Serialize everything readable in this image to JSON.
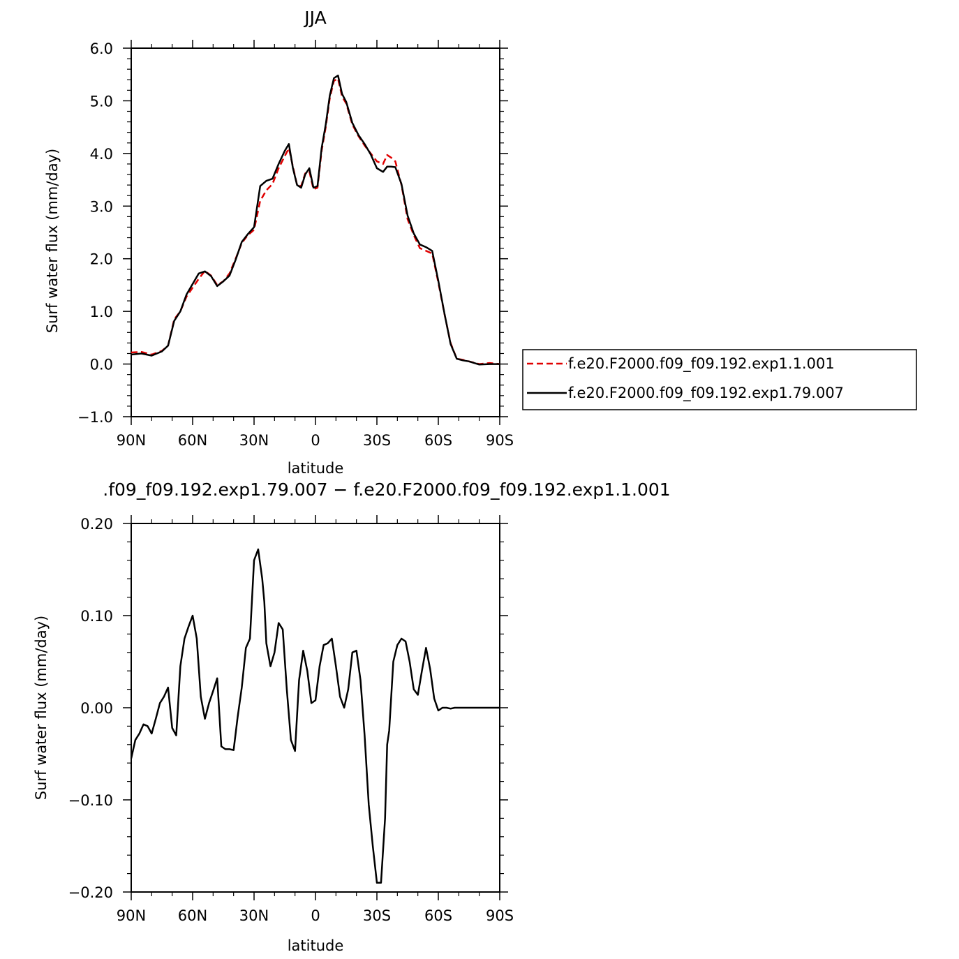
{
  "chart_data": [
    {
      "type": "line",
      "title": "JJA",
      "xlabel": "latitude",
      "ylabel": "Surf water flux (mm/day)",
      "xlim": [
        90,
        -90
      ],
      "ylim": [
        -1.0,
        6.0
      ],
      "x_ticks": [
        90,
        60,
        30,
        0,
        -30,
        -60,
        -90
      ],
      "x_tick_labels": [
        "90N",
        "60N",
        "30N",
        "0",
        "30S",
        "60S",
        "90S"
      ],
      "y_ticks": [
        -1.0,
        0.0,
        1.0,
        2.0,
        3.0,
        4.0,
        5.0,
        6.0
      ],
      "y_tick_labels": [
        "−1.0",
        "0.0",
        "1.0",
        "2.0",
        "3.0",
        "4.0",
        "5.0",
        "6.0"
      ],
      "legend_position": "right",
      "series": [
        {
          "name": "f.e20.F2000.f09_f09.192.exp1.1.001",
          "color": "#e00000",
          "dash": "dashed",
          "x": [
            90,
            85,
            80,
            75,
            72,
            69,
            66,
            63,
            60,
            57,
            54,
            51,
            48,
            45,
            42,
            39,
            36,
            33,
            30,
            27,
            24,
            21,
            18,
            15,
            13,
            11,
            9,
            7,
            5,
            3,
            1,
            -1,
            -3,
            -5,
            -7,
            -9,
            -11,
            -13,
            -15,
            -18,
            -21,
            -24,
            -27,
            -30,
            -33,
            -35,
            -37,
            -39,
            -42,
            -45,
            -48,
            -51,
            -54,
            -57,
            -60,
            -63,
            -66,
            -69,
            -72,
            -75,
            -80,
            -85,
            -90
          ],
          "y": [
            0.22,
            0.23,
            0.18,
            0.25,
            0.35,
            0.85,
            1.0,
            1.28,
            1.45,
            1.62,
            1.77,
            1.68,
            1.5,
            1.57,
            1.72,
            2.0,
            2.3,
            2.45,
            2.55,
            3.1,
            3.3,
            3.42,
            3.72,
            3.95,
            4.1,
            3.75,
            3.4,
            3.38,
            3.62,
            3.66,
            3.32,
            3.35,
            4.05,
            4.5,
            5.05,
            5.38,
            5.42,
            5.08,
            4.95,
            4.55,
            4.33,
            4.15,
            4.0,
            3.85,
            3.8,
            3.97,
            3.92,
            3.85,
            3.4,
            2.75,
            2.45,
            2.2,
            2.15,
            2.1,
            1.55,
            0.95,
            0.4,
            0.1,
            0.08,
            0.05,
            0.0,
            0.02,
            0.0
          ]
        },
        {
          "name": "f.e20.F2000.f09_f09.192.exp1.79.007",
          "color": "#000000",
          "dash": "solid",
          "x": [
            90,
            85,
            80,
            75,
            72,
            69,
            66,
            63,
            60,
            57,
            54,
            51,
            48,
            45,
            42,
            39,
            36,
            33,
            30,
            27,
            24,
            21,
            18,
            15,
            13,
            11,
            9,
            7,
            5,
            3,
            1,
            -1,
            -3,
            -5,
            -7,
            -9,
            -11,
            -13,
            -15,
            -18,
            -21,
            -24,
            -27,
            -30,
            -33,
            -35,
            -37,
            -39,
            -42,
            -45,
            -48,
            -51,
            -54,
            -57,
            -60,
            -63,
            -66,
            -69,
            -72,
            -75,
            -80,
            -85,
            -90
          ],
          "y": [
            0.18,
            0.2,
            0.16,
            0.24,
            0.35,
            0.82,
            1.0,
            1.32,
            1.52,
            1.72,
            1.76,
            1.67,
            1.48,
            1.57,
            1.68,
            1.98,
            2.32,
            2.47,
            2.6,
            3.38,
            3.48,
            3.52,
            3.8,
            4.05,
            4.18,
            3.72,
            3.4,
            3.35,
            3.6,
            3.72,
            3.35,
            3.38,
            4.1,
            4.55,
            5.1,
            5.43,
            5.48,
            5.13,
            4.98,
            4.58,
            4.35,
            4.18,
            3.98,
            3.72,
            3.65,
            3.75,
            3.75,
            3.74,
            3.42,
            2.82,
            2.48,
            2.27,
            2.22,
            2.15,
            1.58,
            0.96,
            0.38,
            0.1,
            0.07,
            0.05,
            -0.01,
            0.0,
            0.0
          ]
        }
      ]
    },
    {
      "type": "line",
      "title": ".f09_f09.192.exp1.79.007 − f.e20.F2000.f09_f09.192.exp1.1.001",
      "xlabel": "latitude",
      "ylabel": "Surf water flux (mm/day)",
      "xlim": [
        90,
        -90
      ],
      "ylim": [
        -0.2,
        0.2
      ],
      "x_ticks": [
        90,
        60,
        30,
        0,
        -30,
        -60,
        -90
      ],
      "x_tick_labels": [
        "90N",
        "60N",
        "30N",
        "0",
        "30S",
        "60S",
        "90S"
      ],
      "y_ticks": [
        -0.2,
        -0.1,
        0.0,
        0.1,
        0.2
      ],
      "y_tick_labels": [
        "−0.20",
        "−0.10",
        "0.00",
        "0.10",
        "0.20"
      ],
      "series": [
        {
          "color": "#000000",
          "dash": "solid",
          "x": [
            90,
            88,
            86,
            84,
            82,
            80,
            78,
            76,
            74,
            72,
            70,
            68,
            66,
            64,
            62,
            60,
            58,
            56,
            54,
            52,
            50,
            48,
            46,
            44,
            42,
            40,
            38,
            36,
            34,
            32,
            30,
            28,
            26,
            25,
            24,
            22,
            20,
            18,
            16,
            14,
            12,
            10,
            8,
            6,
            4,
            2,
            0,
            -2,
            -4,
            -6,
            -8,
            -10,
            -12,
            -14,
            -16,
            -18,
            -20,
            -22,
            -24,
            -26,
            -28,
            -30,
            -32,
            -34,
            -35,
            -36,
            -38,
            -40,
            -42,
            -44,
            -46,
            -48,
            -50,
            -52,
            -54,
            -56,
            -58,
            -60,
            -62,
            -64,
            -66,
            -68,
            -70,
            -74,
            -78,
            -82,
            -86,
            -90
          ],
          "y": [
            -0.055,
            -0.035,
            -0.028,
            -0.018,
            -0.02,
            -0.028,
            -0.012,
            0.005,
            0.012,
            0.022,
            -0.022,
            -0.03,
            0.045,
            0.075,
            0.088,
            0.1,
            0.075,
            0.012,
            -0.012,
            0.005,
            0.018,
            0.032,
            -0.042,
            -0.045,
            -0.045,
            -0.046,
            -0.01,
            0.022,
            0.065,
            0.075,
            0.16,
            0.172,
            0.14,
            0.115,
            0.07,
            0.045,
            0.06,
            0.092,
            0.085,
            0.02,
            -0.035,
            -0.047,
            0.03,
            0.062,
            0.04,
            0.005,
            0.008,
            0.045,
            0.068,
            0.07,
            0.075,
            0.045,
            0.012,
            0.0,
            0.02,
            0.06,
            0.062,
            0.03,
            -0.03,
            -0.105,
            -0.15,
            -0.19,
            -0.19,
            -0.12,
            -0.04,
            -0.025,
            0.05,
            0.068,
            0.075,
            0.072,
            0.05,
            0.02,
            0.014,
            0.04,
            0.065,
            0.042,
            0.01,
            -0.003,
            0.0,
            0.0,
            -0.001,
            0.0,
            0.0,
            0.0,
            0.0,
            0.0,
            0.0,
            0.0
          ]
        }
      ]
    }
  ]
}
